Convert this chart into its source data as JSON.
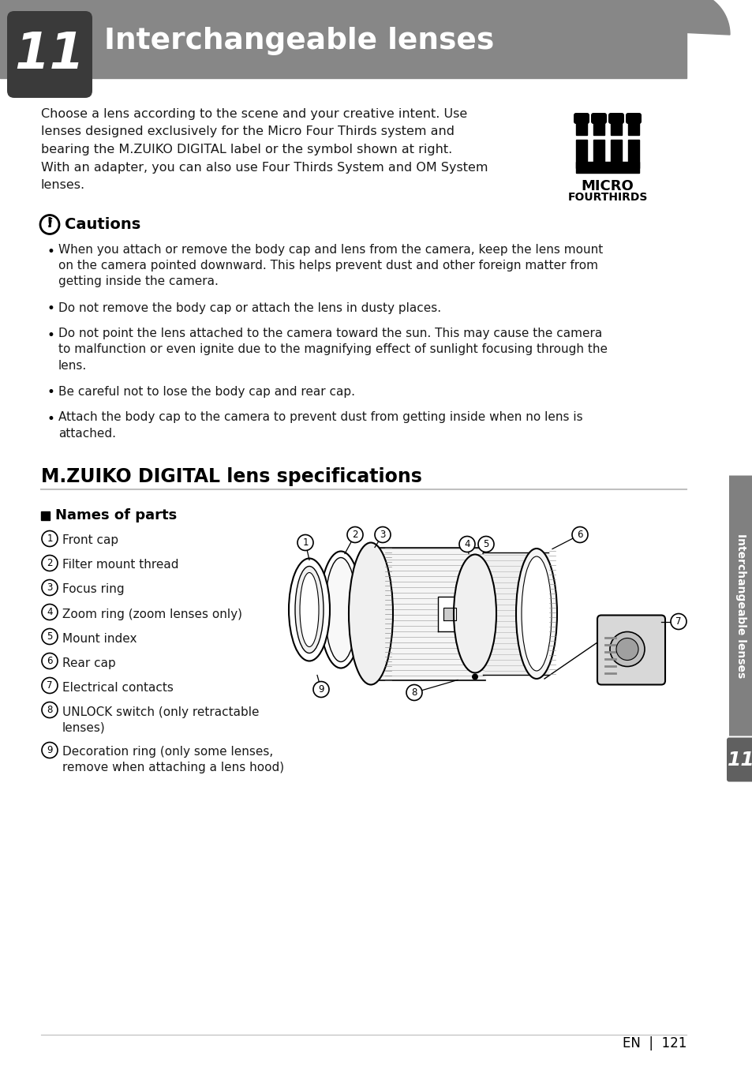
{
  "page_title": "Interchangeable lenses",
  "chapter_num": "11",
  "header_bg": "#878787",
  "header_dark_bg": "#3a3a3a",
  "header_text_color": "#ffffff",
  "body_bg": "#ffffff",
  "body_text_color": "#1a1a1a",
  "intro_text_lines": [
    "Choose a lens according to the scene and your creative intent. Use",
    "lenses designed exclusively for the Micro Four Thirds system and",
    "bearing the M.ZUIKO DIGITAL label or the symbol shown at right.",
    "With an adapter, you can also use Four Thirds System and OM System",
    "lenses."
  ],
  "caution_title": "Cautions",
  "caution_items": [
    [
      "When you attach or remove the body cap and lens from the camera, keep the lens mount",
      "on the camera pointed downward. This helps prevent dust and other foreign matter from",
      "getting inside the camera."
    ],
    [
      "Do not remove the body cap or attach the lens in dusty places."
    ],
    [
      "Do not point the lens attached to the camera toward the sun. This may cause the camera",
      "to malfunction or even ignite due to the magnifying effect of sunlight focusing through the",
      "lens."
    ],
    [
      "Be careful not to lose the body cap and rear cap."
    ],
    [
      "Attach the body cap to the camera to prevent dust from getting inside when no lens is",
      "attached."
    ]
  ],
  "section_title": "M.ZUIKO DIGITAL lens specifications",
  "parts_title": "Names of parts",
  "parts_list": [
    [
      "Front cap"
    ],
    [
      "Filter mount thread"
    ],
    [
      "Focus ring"
    ],
    [
      "Zoom ring (zoom lenses only)"
    ],
    [
      "Mount index"
    ],
    [
      "Rear cap"
    ],
    [
      "Electrical contacts"
    ],
    [
      "UNLOCK switch (only retractable",
      "lenses)"
    ],
    [
      "Decoration ring (only some lenses,",
      "remove when attaching a lens hood)"
    ]
  ],
  "side_label": "Interchangeable lenses",
  "side_num": "11",
  "page_num": "121",
  "section_line_color": "#c0c0c0",
  "tab_bg": "#808080",
  "tab_num_bg": "#606060"
}
